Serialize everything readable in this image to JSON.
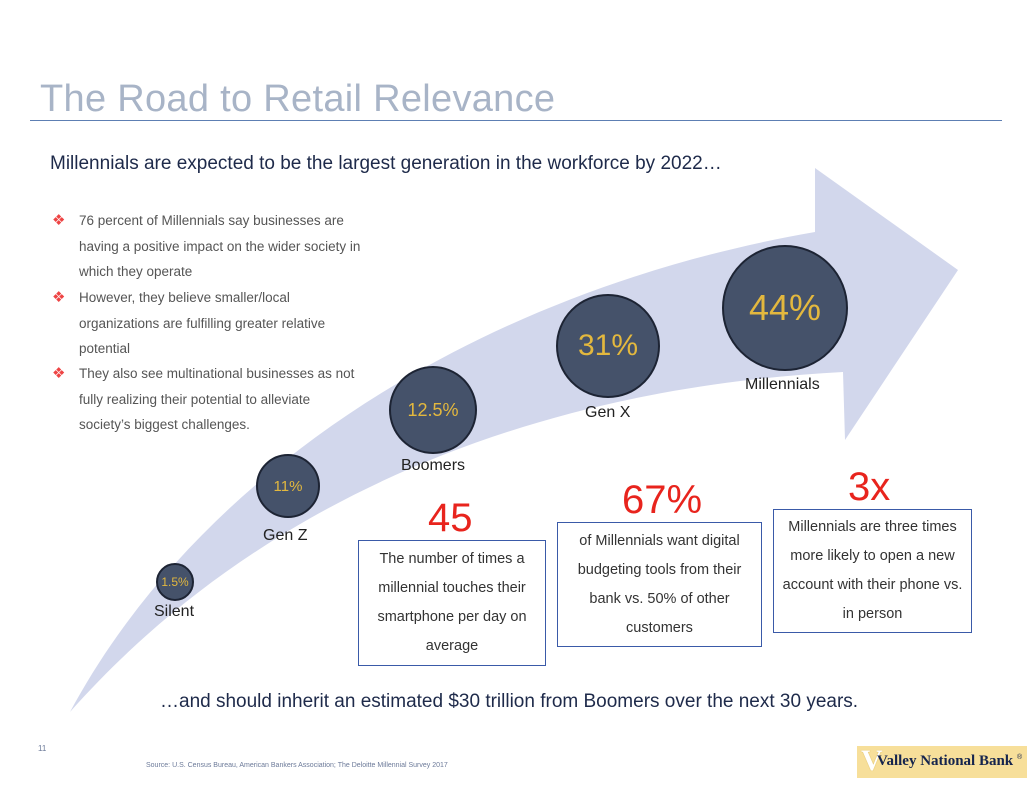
{
  "slide": {
    "title": "The Road to Retail Relevance",
    "subtitle": "Millennials are expected to be the largest generation in the workforce by 2022…",
    "bullet_glyph": "❖",
    "bullets": [
      "76 percent of Millennials say businesses are having a positive impact on the wider society in which they operate",
      "However, they believe smaller/local organizations are fulfilling greater relative potential",
      "They also see multinational businesses as not fully realizing their potential to alleviate society’s biggest challenges."
    ],
    "generations": [
      {
        "label": "Silent",
        "value": "1.5%"
      },
      {
        "label": "Gen Z",
        "value": "11%"
      },
      {
        "label": "Boomers",
        "value": "12.5%"
      },
      {
        "label": "Gen X",
        "value": "31%"
      },
      {
        "label": "Millennials",
        "value": "44%"
      }
    ],
    "stats": [
      {
        "big": "45",
        "text": "The number of times a millennial touches their smartphone per day on average"
      },
      {
        "big": "67%",
        "text": "of Millennials want digital budgeting tools from their bank vs. 50% of other customers"
      },
      {
        "big": "3x",
        "text": "Millennials are three times more likely to open a new account with their phone vs. in person"
      }
    ],
    "footer": "…and should inherit an estimated $30 trillion from Boomers over the next 30 years.",
    "page_number": "11",
    "source": "Source: U.S. Census Bureau, American Bankers Association; The Deloitte Millennial Survey 2017",
    "logo": {
      "mark": "V",
      "text": "Valley National Bank",
      "reg": "®"
    }
  },
  "colors": {
    "title": "#a8b4c7",
    "arrow": "#d2d7ec",
    "circle_fill": "#45526a",
    "circle_text": "#e3b83e",
    "stat_red": "#e8241d",
    "box_border": "#3a5aa8"
  }
}
